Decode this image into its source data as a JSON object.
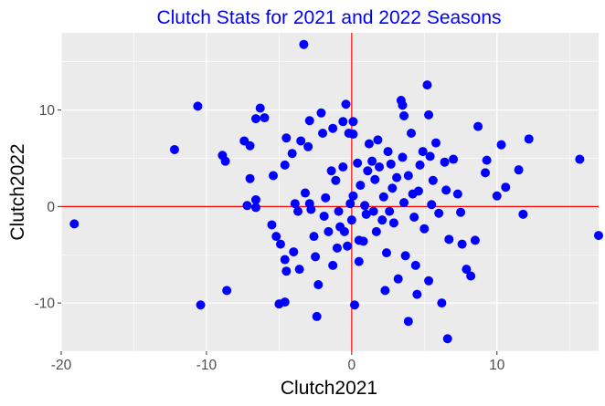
{
  "chart_data": {
    "type": "scatter",
    "title": "Clutch Stats for 2021 and 2022 Seasons",
    "xlabel": "Clutch2021",
    "ylabel": "Clutch2022",
    "xlim": [
      -20,
      17
    ],
    "ylim": [
      -15,
      18
    ],
    "x_ticks": [
      -20,
      -10,
      0,
      10
    ],
    "y_ticks": [
      -10,
      0,
      10
    ],
    "grid": true,
    "reference_lines": {
      "x": 0,
      "y": 0,
      "color": "#ff0000"
    },
    "colors": {
      "points": "#0000ff",
      "panel": "#ebebeb",
      "grid": "#ffffff",
      "title": "#0000ff"
    },
    "points": [
      {
        "x": -19.1,
        "y": -1.8
      },
      {
        "x": -12.2,
        "y": 5.9
      },
      {
        "x": -10.6,
        "y": 10.4
      },
      {
        "x": -10.4,
        "y": -10.2
      },
      {
        "x": -8.6,
        "y": -8.7
      },
      {
        "x": -8.9,
        "y": 5.3
      },
      {
        "x": -8.7,
        "y": 4.7
      },
      {
        "x": -7.4,
        "y": 6.8
      },
      {
        "x": -7.0,
        "y": 6.3
      },
      {
        "x": -6.6,
        "y": 0.7
      },
      {
        "x": -6.6,
        "y": -0.1
      },
      {
        "x": -6.6,
        "y": 9.1
      },
      {
        "x": -6.3,
        "y": 10.2
      },
      {
        "x": -6.0,
        "y": 9.2
      },
      {
        "x": -7.2,
        "y": 0.1
      },
      {
        "x": -7.0,
        "y": 2.9
      },
      {
        "x": -5.5,
        "y": -1.9
      },
      {
        "x": -5.4,
        "y": 3.2
      },
      {
        "x": -5.2,
        "y": -3.1
      },
      {
        "x": -4.9,
        "y": -3.9
      },
      {
        "x": -4.6,
        "y": -5.5
      },
      {
        "x": -5.0,
        "y": -10.1
      },
      {
        "x": -4.6,
        "y": -9.9
      },
      {
        "x": -4.5,
        "y": -6.7
      },
      {
        "x": -4.6,
        "y": 4.3
      },
      {
        "x": -4.5,
        "y": 7.1
      },
      {
        "x": -4.1,
        "y": 5.5
      },
      {
        "x": -4.0,
        "y": -4.7
      },
      {
        "x": -3.9,
        "y": 0.3
      },
      {
        "x": -3.7,
        "y": -0.5
      },
      {
        "x": -3.6,
        "y": -6.5
      },
      {
        "x": -3.5,
        "y": 6.8
      },
      {
        "x": -3.3,
        "y": 16.8
      },
      {
        "x": -3.0,
        "y": 6.2
      },
      {
        "x": -2.9,
        "y": 8.9
      },
      {
        "x": -2.9,
        "y": 0.3
      },
      {
        "x": -2.6,
        "y": -3.1
      },
      {
        "x": -2.5,
        "y": -5.2
      },
      {
        "x": -2.3,
        "y": -8.1
      },
      {
        "x": -2.4,
        "y": -11.4
      },
      {
        "x": -2.1,
        "y": 9.7
      },
      {
        "x": -2.0,
        "y": 7.6
      },
      {
        "x": -1.8,
        "y": 0.9
      },
      {
        "x": -1.6,
        "y": -2.6
      },
      {
        "x": -1.4,
        "y": 3.7
      },
      {
        "x": -1.3,
        "y": 8.1
      },
      {
        "x": -1.1,
        "y": 2.7
      },
      {
        "x": -0.9,
        "y": -0.5
      },
      {
        "x": -0.8,
        "y": -2.1
      },
      {
        "x": -0.6,
        "y": 4.1
      },
      {
        "x": -0.6,
        "y": 8.8
      },
      {
        "x": -0.4,
        "y": 10.6
      },
      {
        "x": -0.2,
        "y": 7.6
      },
      {
        "x": 0.1,
        "y": 8.8
      },
      {
        "x": 0.1,
        "y": 1.1
      },
      {
        "x": 0.0,
        "y": -1.4
      },
      {
        "x": 0.2,
        "y": -10.2
      },
      {
        "x": 0.4,
        "y": 4.5
      },
      {
        "x": 0.1,
        "y": 7.5
      },
      {
        "x": -0.1,
        "y": 0.3
      },
      {
        "x": -0.3,
        "y": -4.1
      },
      {
        "x": -1.0,
        "y": -4.3
      },
      {
        "x": -1.9,
        "y": -1.0
      },
      {
        "x": 0.5,
        "y": -3.5
      },
      {
        "x": 0.5,
        "y": -5.7
      },
      {
        "x": 0.8,
        "y": -3.6
      },
      {
        "x": 0.9,
        "y": 0.1
      },
      {
        "x": 1.1,
        "y": 3.7
      },
      {
        "x": 1.2,
        "y": 6.5
      },
      {
        "x": 1.4,
        "y": 4.7
      },
      {
        "x": 1.5,
        "y": -0.5
      },
      {
        "x": 1.7,
        "y": -2.6
      },
      {
        "x": 1.8,
        "y": 6.9
      },
      {
        "x": 1.9,
        "y": 4.1
      },
      {
        "x": 2.1,
        "y": -1.4
      },
      {
        "x": 2.2,
        "y": 1.0
      },
      {
        "x": 2.3,
        "y": -8.7
      },
      {
        "x": 2.4,
        "y": -4.8
      },
      {
        "x": 2.5,
        "y": 5.7
      },
      {
        "x": 2.7,
        "y": 4.4
      },
      {
        "x": 2.8,
        "y": 1.9
      },
      {
        "x": 2.9,
        "y": -1.7
      },
      {
        "x": 3.1,
        "y": 3.0
      },
      {
        "x": 3.2,
        "y": -7.5
      },
      {
        "x": 3.4,
        "y": 11.0
      },
      {
        "x": 3.5,
        "y": 10.5
      },
      {
        "x": 3.6,
        "y": 9.4
      },
      {
        "x": 3.5,
        "y": 5.1
      },
      {
        "x": 3.6,
        "y": 0.4
      },
      {
        "x": 3.7,
        "y": -5.1
      },
      {
        "x": 3.9,
        "y": -11.9
      },
      {
        "x": 3.9,
        "y": 3.2
      },
      {
        "x": 4.1,
        "y": 7.6
      },
      {
        "x": 4.2,
        "y": 1.3
      },
      {
        "x": 4.3,
        "y": -1.1
      },
      {
        "x": 4.4,
        "y": -6.1
      },
      {
        "x": 4.5,
        "y": -9.1
      },
      {
        "x": 4.7,
        "y": 4.3
      },
      {
        "x": 4.9,
        "y": 5.7
      },
      {
        "x": 5.0,
        "y": -2.3
      },
      {
        "x": 5.2,
        "y": 12.6
      },
      {
        "x": 5.3,
        "y": 9.5
      },
      {
        "x": 5.4,
        "y": 5.2
      },
      {
        "x": 5.5,
        "y": 0.2
      },
      {
        "x": 5.3,
        "y": -7.7
      },
      {
        "x": 5.6,
        "y": 2.7
      },
      {
        "x": 5.8,
        "y": 6.6
      },
      {
        "x": 6.0,
        "y": -0.7
      },
      {
        "x": 6.2,
        "y": -10.0
      },
      {
        "x": 6.4,
        "y": 4.6
      },
      {
        "x": 6.5,
        "y": 1.7
      },
      {
        "x": 6.6,
        "y": -13.7
      },
      {
        "x": 6.7,
        "y": -3.4
      },
      {
        "x": 7.0,
        "y": 4.9
      },
      {
        "x": 7.3,
        "y": 1.3
      },
      {
        "x": 7.5,
        "y": -0.6
      },
      {
        "x": 7.6,
        "y": -3.9
      },
      {
        "x": 7.9,
        "y": -6.5
      },
      {
        "x": 8.2,
        "y": -7.2
      },
      {
        "x": 8.5,
        "y": -3.5
      },
      {
        "x": 8.7,
        "y": 8.3
      },
      {
        "x": 9.2,
        "y": 3.5
      },
      {
        "x": 9.3,
        "y": 4.8
      },
      {
        "x": 10.0,
        "y": 1.1
      },
      {
        "x": 10.3,
        "y": 6.4
      },
      {
        "x": 10.6,
        "y": 2.0
      },
      {
        "x": 11.5,
        "y": 3.8
      },
      {
        "x": 11.8,
        "y": -0.8
      },
      {
        "x": 12.2,
        "y": 7.0
      },
      {
        "x": 15.7,
        "y": 4.9
      },
      {
        "x": 17.0,
        "y": -3.0
      },
      {
        "x": -1.3,
        "y": -6.1
      },
      {
        "x": -2.8,
        "y": -0.3
      },
      {
        "x": -0.5,
        "y": -2.6
      },
      {
        "x": 1.0,
        "y": -0.8
      },
      {
        "x": 2.6,
        "y": -0.5
      },
      {
        "x": 0.6,
        "y": 2.2
      },
      {
        "x": -3.2,
        "y": 1.4
      },
      {
        "x": 1.6,
        "y": 2.8
      },
      {
        "x": 4.6,
        "y": 1.6
      }
    ]
  }
}
